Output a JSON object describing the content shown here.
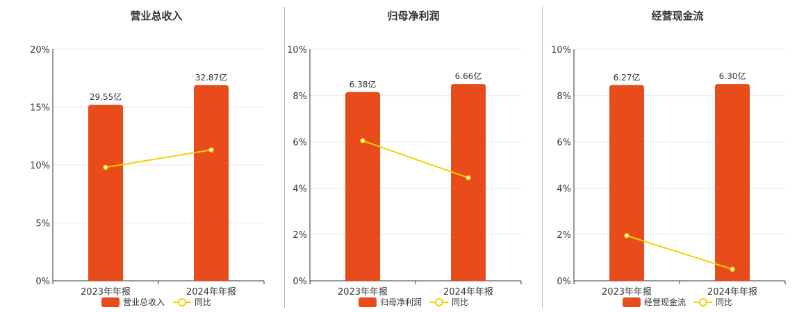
{
  "colors": {
    "bar": "#e84c1a",
    "line": "#f5d000",
    "grid": "#e6e6e6",
    "axis": "#333333"
  },
  "chart_data": [
    {
      "type": "bar",
      "title": "营业总收入",
      "categories": [
        "2023年年报",
        "2024年年报"
      ],
      "bar_values": [
        15.2,
        16.9
      ],
      "bar_labels": [
        "29.55亿",
        "32.87亿"
      ],
      "line_values": [
        9.8,
        11.3
      ],
      "ylim": [
        0,
        20
      ],
      "yticks": [
        "0%",
        "5%",
        "10%",
        "15%",
        "20%"
      ],
      "legend": [
        "营业总收入",
        "同比"
      ]
    },
    {
      "type": "bar",
      "title": "归母净利润",
      "categories": [
        "2023年年报",
        "2024年年报"
      ],
      "bar_values": [
        8.15,
        8.5
      ],
      "bar_labels": [
        "6.38亿",
        "6.66亿"
      ],
      "line_values": [
        6.05,
        4.45
      ],
      "ylim": [
        0,
        10
      ],
      "yticks": [
        "0%",
        "2%",
        "4%",
        "6%",
        "8%",
        "10%"
      ],
      "legend": [
        "归母净利润",
        "同比"
      ]
    },
    {
      "type": "bar",
      "title": "经营现金流",
      "categories": [
        "2023年年报",
        "2024年年报"
      ],
      "bar_values": [
        8.45,
        8.5
      ],
      "bar_labels": [
        "6.27亿",
        "6.30亿"
      ],
      "line_values": [
        1.95,
        0.5
      ],
      "ylim": [
        0,
        10
      ],
      "yticks": [
        "0%",
        "2%",
        "4%",
        "6%",
        "8%",
        "10%"
      ],
      "legend": [
        "经营现金流",
        "同比"
      ]
    }
  ]
}
